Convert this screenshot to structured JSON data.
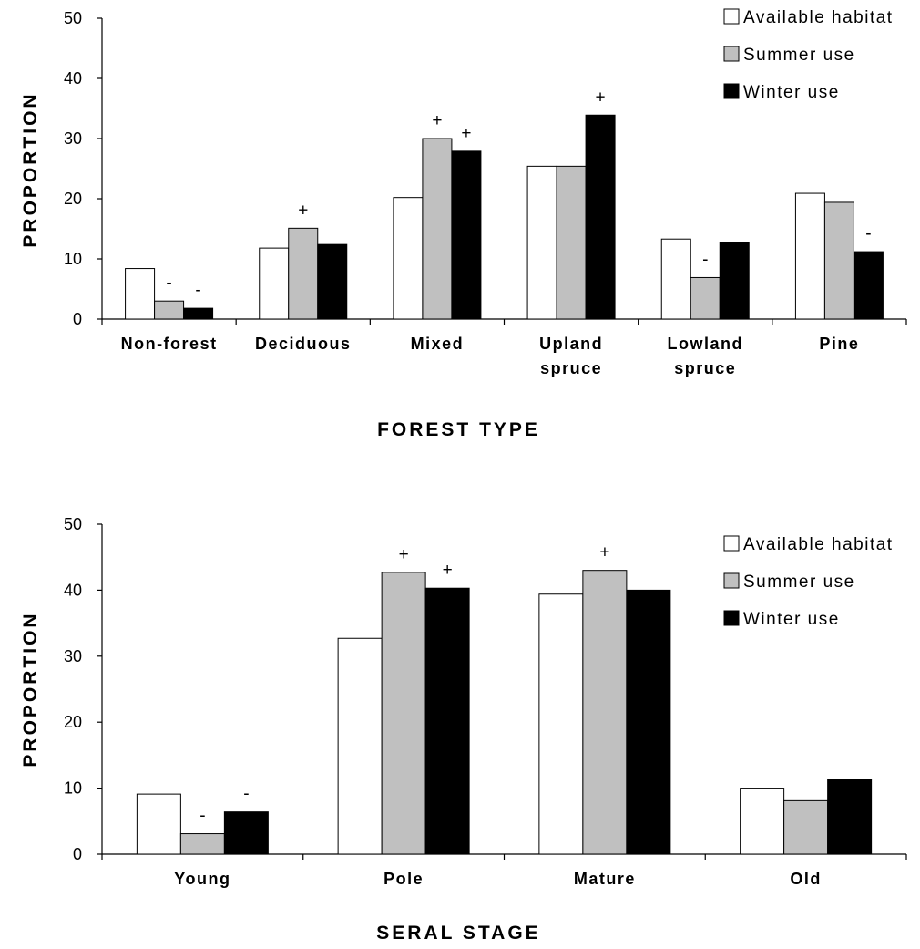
{
  "colors": {
    "available": "#ffffff",
    "summer": "#c0c0c0",
    "winter": "#000000",
    "outline": "#000000"
  },
  "chart_data": [
    {
      "type": "bar",
      "xlabel": "FOREST TYPE",
      "ylabel": "PROPORTION",
      "ylim": [
        0,
        50
      ],
      "yticks": [
        0,
        10,
        20,
        30,
        40,
        50
      ],
      "legend_position": "top-right",
      "categories": [
        [
          "Non-forest"
        ],
        [
          "Deciduous"
        ],
        [
          "Mixed"
        ],
        [
          "Upland",
          "spruce"
        ],
        [
          "Lowland",
          "spruce"
        ],
        [
          "Pine"
        ]
      ],
      "series": [
        {
          "name": "Available habitat",
          "color": "#ffffff",
          "values": [
            8.4,
            11.8,
            20.2,
            25.4,
            13.3,
            20.9
          ],
          "marks": [
            "",
            "",
            "",
            "",
            "",
            ""
          ]
        },
        {
          "name": "Summer use",
          "color": "#c0c0c0",
          "values": [
            3.0,
            15.1,
            30.0,
            25.4,
            6.9,
            19.4
          ],
          "marks": [
            "-",
            "+",
            "+",
            "",
            "-",
            ""
          ]
        },
        {
          "name": "Winter use",
          "color": "#000000",
          "values": [
            1.8,
            12.4,
            27.9,
            33.9,
            12.7,
            11.2
          ],
          "marks": [
            "-",
            "",
            "+",
            "+",
            "",
            "-"
          ]
        }
      ]
    },
    {
      "type": "bar",
      "xlabel": "SERAL STAGE",
      "ylabel": "PROPORTION",
      "ylim": [
        0,
        50
      ],
      "yticks": [
        0,
        10,
        20,
        30,
        40,
        50
      ],
      "legend_position": "top-right",
      "categories": [
        [
          "Young"
        ],
        [
          "Pole"
        ],
        [
          "Mature"
        ],
        [
          "Old"
        ]
      ],
      "series": [
        {
          "name": "Available habitat",
          "color": "#ffffff",
          "values": [
            9.1,
            32.7,
            39.4,
            10.0
          ],
          "marks": [
            "",
            "",
            "",
            ""
          ]
        },
        {
          "name": "Summer use",
          "color": "#c0c0c0",
          "values": [
            3.1,
            42.7,
            43.0,
            8.1
          ],
          "marks": [
            "-",
            "+",
            "+",
            ""
          ]
        },
        {
          "name": "Winter use",
          "color": "#000000",
          "values": [
            6.4,
            40.3,
            40.0,
            11.3
          ],
          "marks": [
            "-",
            "+",
            "",
            ""
          ]
        }
      ]
    }
  ]
}
